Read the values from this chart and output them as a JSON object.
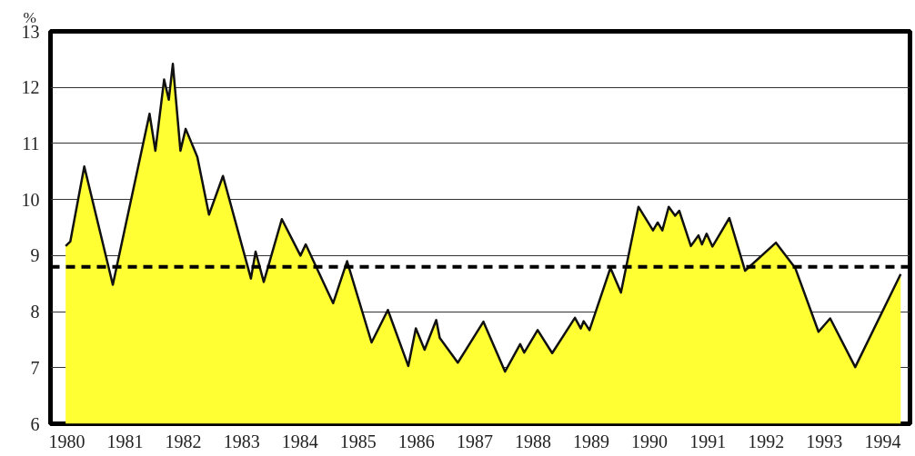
{
  "chart_data": {
    "type": "area",
    "ylabel": "%",
    "color": "#ffff33",
    "x": [
      1979.98,
      1980.06,
      1980.3,
      1980.79,
      1981.42,
      1981.52,
      1981.67,
      1981.75,
      1981.82,
      1981.95,
      1982.04,
      1982.24,
      1982.44,
      1982.68,
      1983.16,
      1983.24,
      1983.38,
      1983.69,
      1984.01,
      1984.1,
      1984.57,
      1984.81,
      1985.23,
      1985.51,
      1985.86,
      1985.99,
      1986.14,
      1986.34,
      1986.4,
      1986.71,
      1987.15,
      1987.52,
      1987.78,
      1987.85,
      1988.08,
      1988.33,
      1988.72,
      1988.82,
      1988.87,
      1988.97,
      1989.33,
      1989.51,
      1989.81,
      1990.06,
      1990.14,
      1990.22,
      1990.33,
      1990.44,
      1990.51,
      1990.71,
      1990.84,
      1990.9,
      1990.98,
      1991.08,
      1991.37,
      1991.64,
      1992.17,
      1992.5,
      1992.9,
      1993.1,
      1993.53,
      1994.31
    ],
    "values": [
      9.17,
      9.25,
      10.59,
      8.48,
      11.53,
      10.87,
      12.14,
      11.78,
      12.42,
      10.87,
      11.26,
      10.76,
      9.73,
      10.42,
      8.59,
      9.07,
      8.53,
      9.65,
      9.0,
      9.2,
      8.15,
      8.9,
      7.45,
      8.03,
      7.03,
      7.7,
      7.32,
      7.85,
      7.53,
      7.09,
      7.82,
      6.93,
      7.42,
      7.27,
      7.67,
      7.26,
      7.89,
      7.7,
      7.83,
      7.67,
      8.78,
      8.34,
      9.87,
      9.45,
      9.59,
      9.45,
      9.87,
      9.71,
      9.8,
      9.17,
      9.36,
      9.2,
      9.39,
      9.16,
      9.67,
      8.73,
      9.23,
      8.78,
      7.64,
      7.88,
      7.01,
      8.67
    ],
    "xlim": [
      1979.72,
      1994.47
    ],
    "ylim": [
      6,
      13
    ],
    "xticks": [
      1980,
      1981,
      1982,
      1983,
      1984,
      1985,
      1986,
      1987,
      1988,
      1989,
      1990,
      1991,
      1992,
      1993,
      1994
    ],
    "yticks": [
      6,
      7,
      8,
      9,
      10,
      11,
      12,
      13
    ],
    "grid": "y",
    "ref_lines": [
      {
        "axis": "y",
        "value": 8.8,
        "color": "#000000",
        "line_style": "dashed"
      }
    ]
  }
}
